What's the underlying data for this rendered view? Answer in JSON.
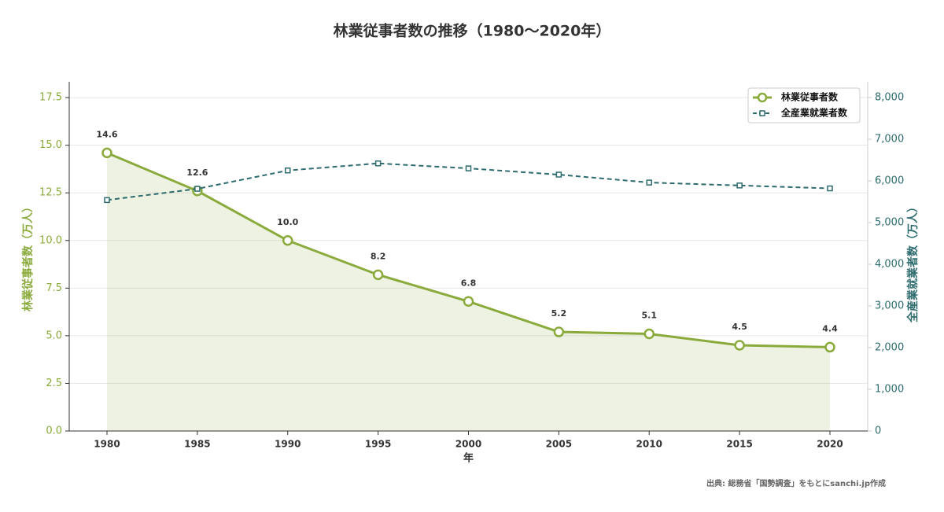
{
  "chart_data": {
    "type": "line",
    "title": "林業従事者数の推移（1980〜2020年）",
    "x_label": "年",
    "y_label": "林業従事者数（万人）",
    "y2_label": "全産業就業者数（万人）",
    "source": "出典: 総務省「国勢調査」をもとにsanchi.jp作成",
    "categories": [
      "1980",
      "1985",
      "1990",
      "1995",
      "2000",
      "2005",
      "2010",
      "2015",
      "2020"
    ],
    "series": [
      {
        "name": "林業従事者数",
        "color": "#8aab3c",
        "values": [
          14.6,
          12.6,
          10.0,
          8.2,
          6.8,
          5.2,
          5.1,
          4.5,
          4.4
        ],
        "value_labels": [
          "14.6",
          "12.6",
          "10.0",
          "8.2",
          "6.8",
          "5.2",
          "5.1",
          "4.5",
          "4.4"
        ],
        "fill": true,
        "marker": "circle"
      },
      {
        "name": "全産業就業者数",
        "color": "#2e6b6e",
        "axis": "y2",
        "dashed": true,
        "marker": "square",
        "values": [
          5540,
          5810,
          6250,
          6420,
          6300,
          6150,
          5960,
          5890,
          5820
        ]
      }
    ],
    "ylim": [
      0,
      18.33
    ],
    "yticks": [
      {
        "value": 0,
        "label": "0.0"
      },
      2.5,
      {
        "value": 5,
        "label": "5.0"
      },
      7.5,
      {
        "value": 10,
        "label": "10.0"
      },
      12.5,
      {
        "value": 15,
        "label": "15.0"
      },
      17.5
    ],
    "y2lim": [
      0,
      8377
    ],
    "y2ticks": [
      0,
      {
        "value": 1000,
        "label": "1,000"
      },
      {
        "value": 2000,
        "label": "2,000"
      },
      {
        "value": 3000,
        "label": "3,000"
      },
      {
        "value": 4000,
        "label": "4,000"
      },
      {
        "value": 5000,
        "label": "5,000"
      },
      {
        "value": 6000,
        "label": "6,000"
      },
      {
        "value": 7000,
        "label": "7,000"
      },
      {
        "value": 8000,
        "label": "8,000"
      }
    ],
    "grid": true,
    "legend": "upper right"
  }
}
